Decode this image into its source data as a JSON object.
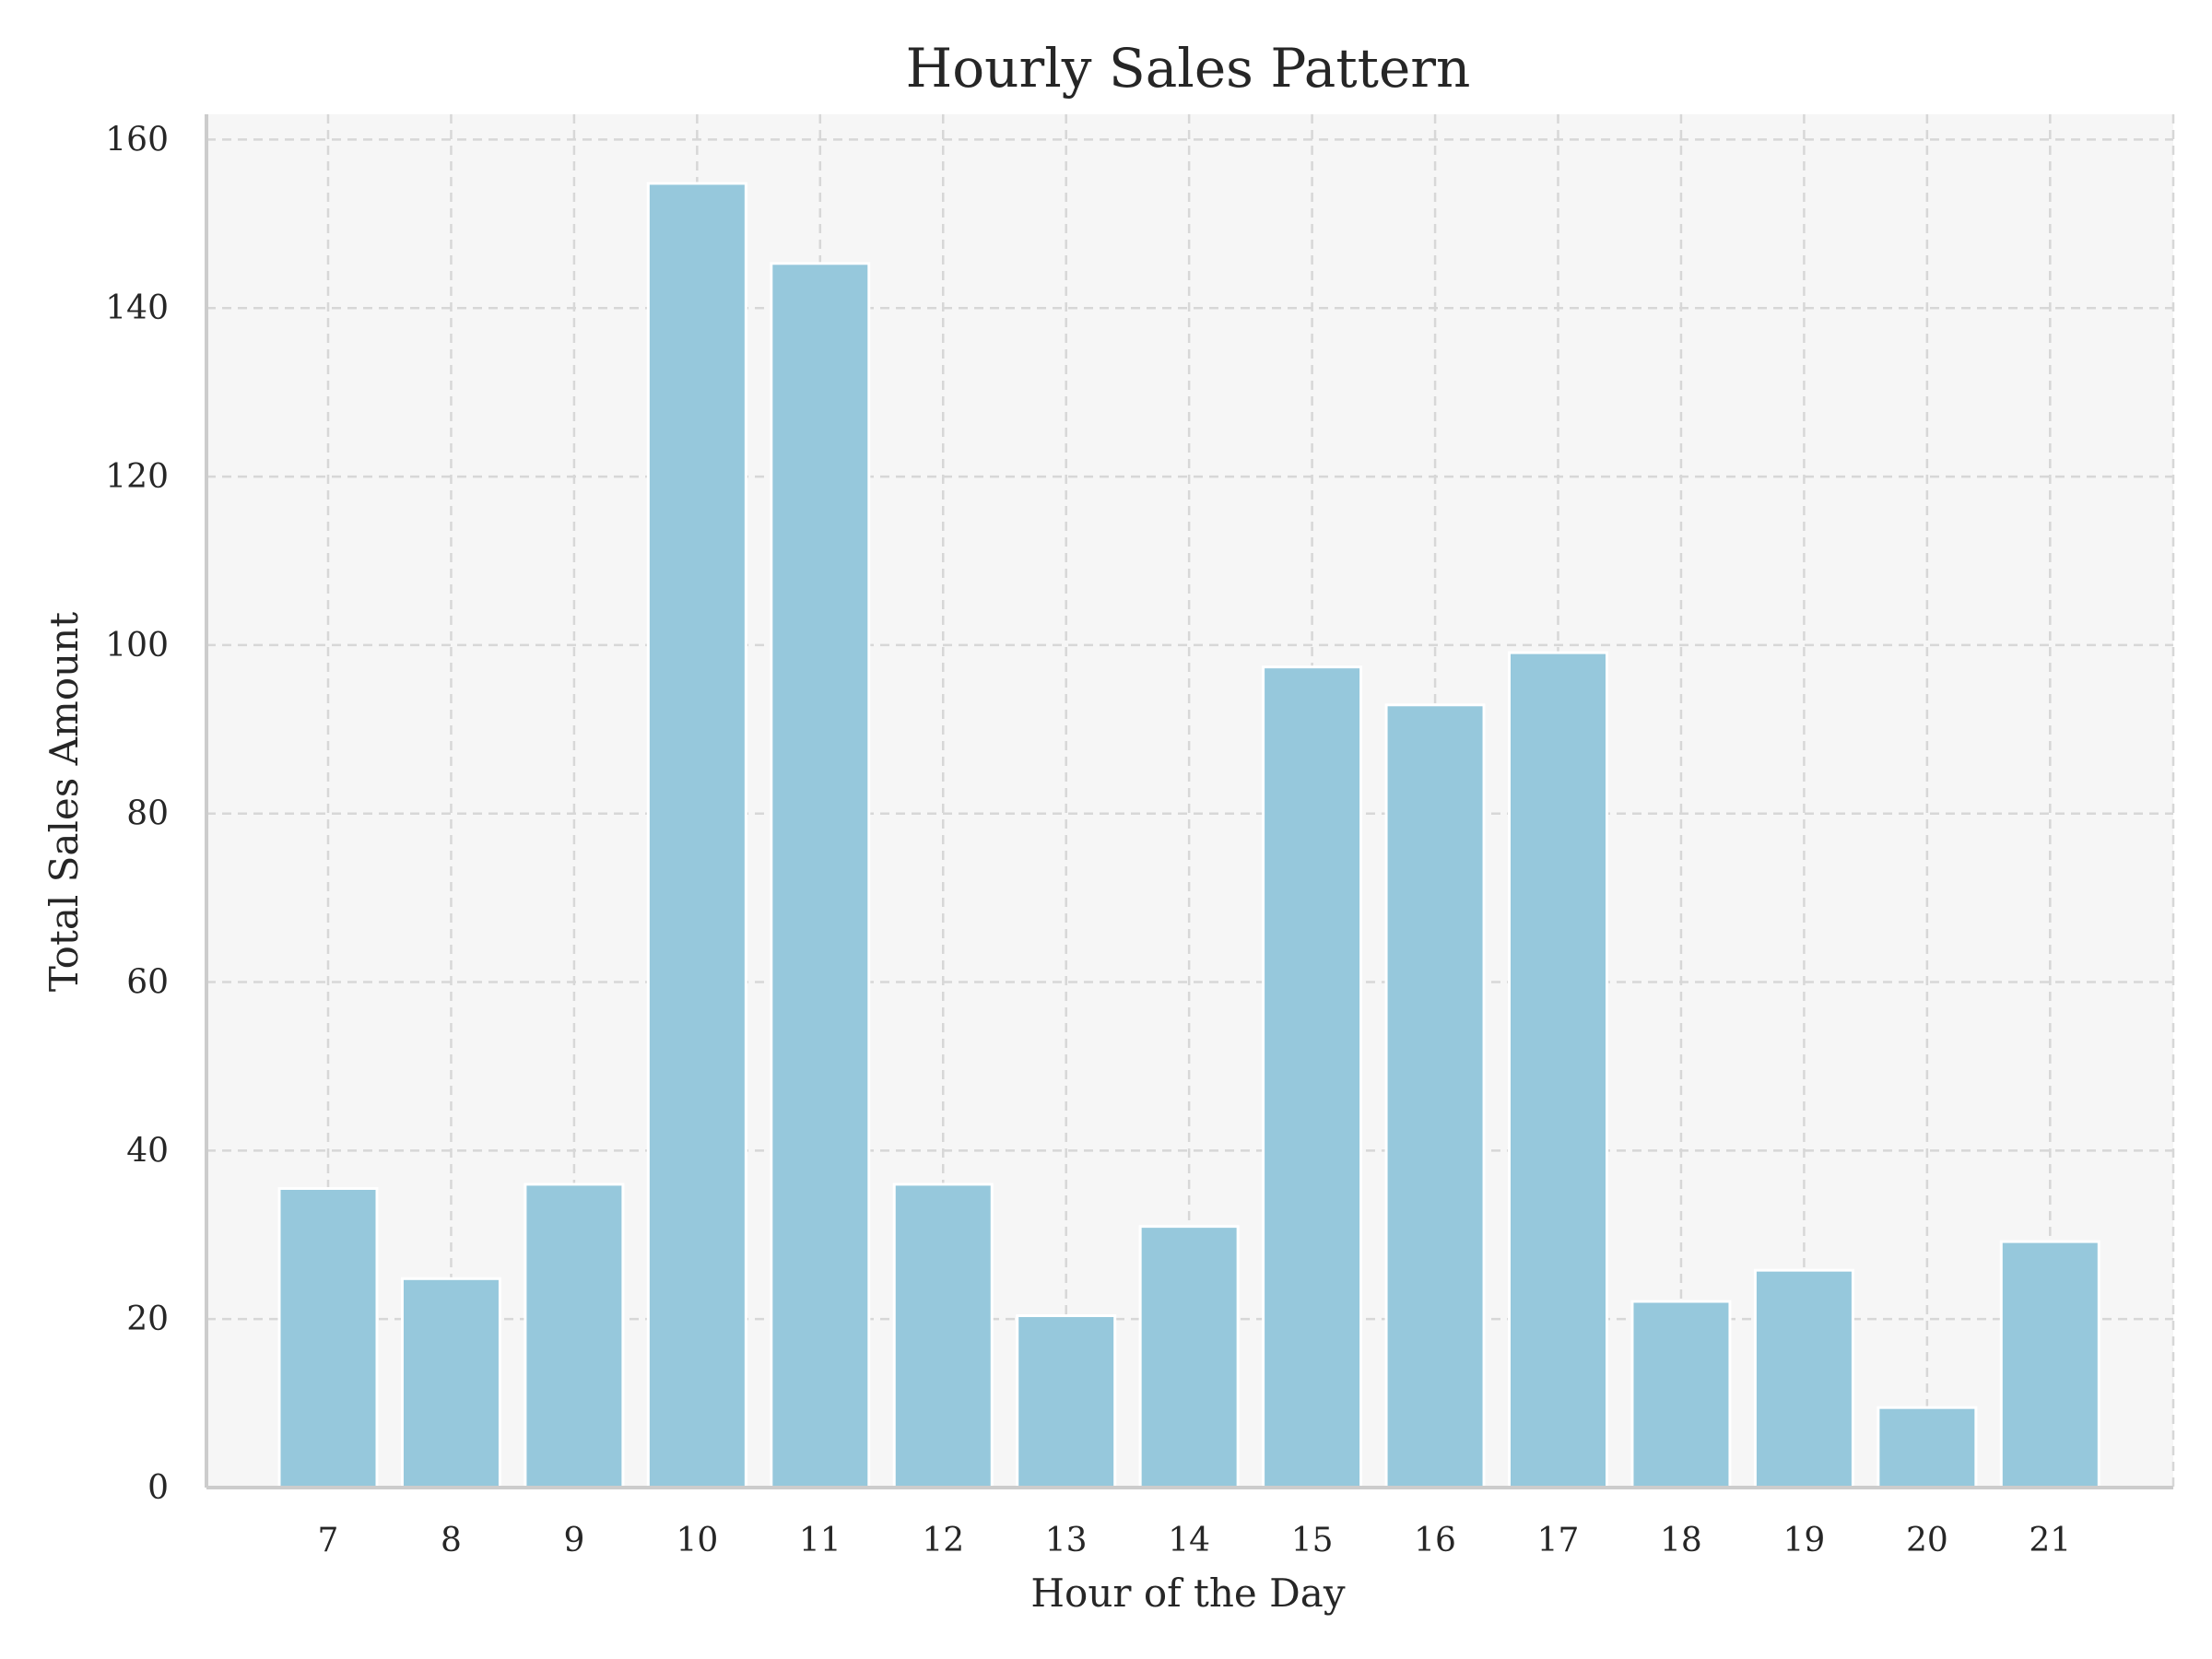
{
  "chart_data": {
    "type": "bar",
    "title": "Hourly Sales Pattern",
    "xlabel": "Hour of the Day",
    "ylabel": "Total Sales Amount",
    "categories": [
      "7",
      "8",
      "9",
      "10",
      "11",
      "12",
      "13",
      "14",
      "15",
      "16",
      "17",
      "18",
      "19",
      "20",
      "21"
    ],
    "values": [
      35.5,
      24.8,
      36.0,
      154.8,
      145.3,
      36.0,
      20.4,
      31.0,
      97.4,
      92.9,
      99.1,
      22.1,
      25.8,
      9.5,
      29.2
    ],
    "ylim": [
      0,
      163
    ],
    "yticks": [
      0,
      20,
      40,
      60,
      80,
      100,
      120,
      140,
      160
    ],
    "grid": true,
    "colors": {
      "bar": "#96c8dc",
      "bar_edge": "#ffffff",
      "plot_background": "#f6f6f6",
      "grid": "#d7d7d7",
      "axis": "#cccccc",
      "text": "#262626"
    }
  }
}
